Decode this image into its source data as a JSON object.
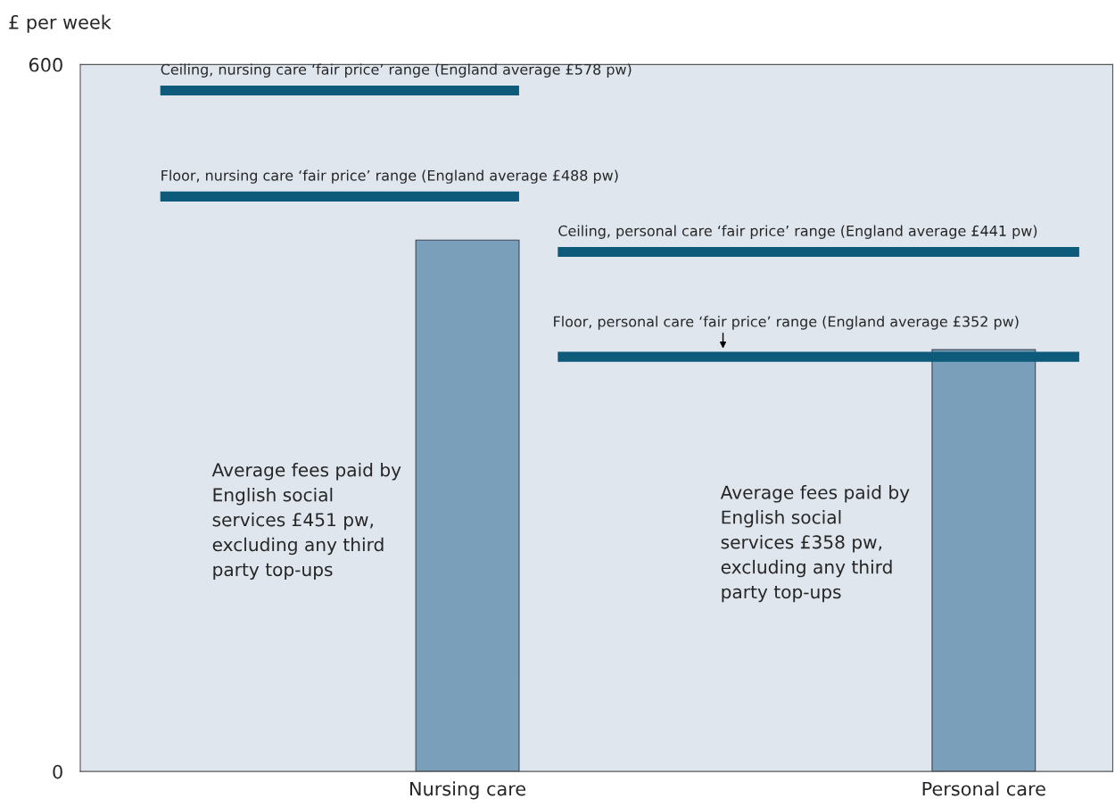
{
  "chart_data": {
    "type": "bar",
    "ylabel": "£ per week",
    "categories": [
      null,
      "Nursing care",
      null,
      "Personal care"
    ],
    "values": [
      null,
      451,
      null,
      358
    ],
    "color": "#7a9fba",
    "ylim": [
      0,
      600
    ],
    "yticks": [
      0,
      600
    ],
    "grid": false,
    "ref_lines": [
      {
        "axis": "y",
        "value": 578,
        "label": "Ceiling, nursing care ‘fair price’ range (England average £578 pw)",
        "color": "#0e5a7a"
      },
      {
        "axis": "y",
        "value": 488,
        "label": "Floor, nursing care ‘fair price’ range (England average £488 pw)",
        "color": "#0e5a7a"
      },
      {
        "axis": "y",
        "value": 441,
        "label": "Ceiling, personal care ‘fair price’ range (England average £441 pw)",
        "color": "#0e5a7a"
      },
      {
        "axis": "y",
        "value": 352,
        "label": "Floor, personal care ‘fair price’ range (England average £352 pw)",
        "color": "#0e5a7a"
      }
    ],
    "annotations": [
      "Average fees paid by\nEnglish social\nservices £451 pw,\nexcluding any third\nparty top-ups",
      "Average fees paid by\nEnglish social\nservices £358 pw,\nexcluding any third\nparty top-ups"
    ]
  }
}
